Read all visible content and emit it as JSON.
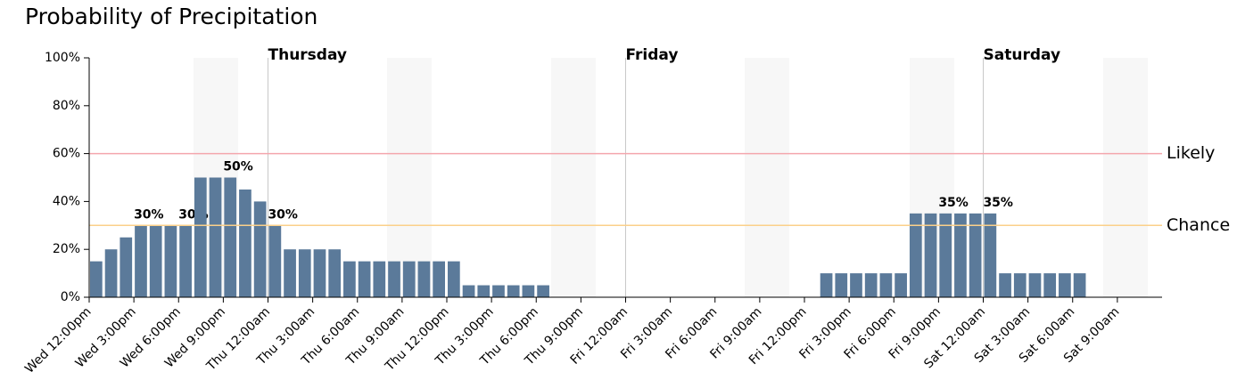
{
  "chart_data": {
    "type": "bar",
    "title": "Probability of Precipitation",
    "categories": [
      "Wed 12:00pm",
      null,
      null,
      "Wed 3:00pm",
      null,
      null,
      "Wed 6:00pm",
      null,
      null,
      "Wed 9:00pm",
      null,
      null,
      "Thu 12:00am",
      null,
      null,
      "Thu 3:00am",
      null,
      null,
      "Thu 6:00am",
      null,
      null,
      "Thu 9:00am",
      null,
      null,
      "Thu 12:00pm",
      null,
      null,
      "Thu 3:00pm",
      null,
      null,
      "Thu 6:00pm",
      null,
      null,
      "Thu 9:00pm",
      null,
      null,
      "Fri 12:00am",
      null,
      null,
      "Fri 3:00am",
      null,
      null,
      "Fri 6:00am",
      null,
      null,
      "Fri 9:00am",
      null,
      null,
      "Fri 12:00pm",
      null,
      null,
      "Fri 3:00pm",
      null,
      null,
      "Fri 6:00pm",
      null,
      null,
      "Fri 9:00pm",
      null,
      null,
      "Sat 12:00am",
      null,
      null,
      "Sat 3:00am",
      null,
      null,
      "Sat 6:00am",
      null,
      null,
      "Sat 9:00am",
      null,
      null
    ],
    "values": [
      15,
      20,
      25,
      30,
      30,
      30,
      30,
      50,
      50,
      50,
      45,
      40,
      30,
      20,
      20,
      20,
      20,
      15,
      15,
      15,
      15,
      15,
      15,
      15,
      15,
      5,
      5,
      5,
      5,
      5,
      5,
      0,
      0,
      0,
      0,
      0,
      0,
      0,
      0,
      0,
      0,
      0,
      0,
      0,
      0,
      0,
      0,
      0,
      0,
      10,
      10,
      10,
      10,
      10,
      10,
      35,
      35,
      35,
      35,
      35,
      35,
      10,
      10,
      10,
      10,
      10,
      10,
      0,
      0,
      0,
      0,
      0
    ],
    "value_labels": [
      null,
      null,
      null,
      "30%",
      null,
      null,
      "30%",
      null,
      null,
      "50%",
      null,
      null,
      "30%",
      null,
      null,
      null,
      null,
      null,
      null,
      null,
      null,
      null,
      null,
      null,
      null,
      null,
      null,
      null,
      null,
      null,
      null,
      null,
      null,
      null,
      null,
      null,
      null,
      null,
      null,
      null,
      null,
      null,
      null,
      null,
      null,
      null,
      null,
      null,
      null,
      null,
      null,
      null,
      null,
      null,
      null,
      null,
      null,
      "35%",
      null,
      null,
      "35%",
      null,
      null,
      null,
      null,
      null,
      null,
      null,
      null,
      null,
      null,
      null
    ],
    "color": "#5b7a9a",
    "ylim": [
      0,
      100
    ],
    "yticks": [
      {
        "value": 0,
        "label": "0%"
      },
      {
        "value": 20,
        "label": "20%"
      },
      {
        "value": 40,
        "label": "40%"
      },
      {
        "value": 60,
        "label": "60%"
      },
      {
        "value": 80,
        "label": "80%"
      },
      {
        "value": 100,
        "label": "100%"
      }
    ],
    "thresholds": [
      {
        "label": "Likely",
        "value": 60,
        "color": "#f4a6ad",
        "text_color": "#4a1010"
      },
      {
        "label": "Chance",
        "value": 30,
        "color": "#fbd08a",
        "text_color": "#4a2a00"
      }
    ],
    "day_markers": [
      {
        "label": "Thursday",
        "category": "Thu 12:00am"
      },
      {
        "label": "Friday",
        "category": "Fri 12:00am"
      },
      {
        "label": "Saturday",
        "category": "Sat 12:00am"
      }
    ]
  }
}
